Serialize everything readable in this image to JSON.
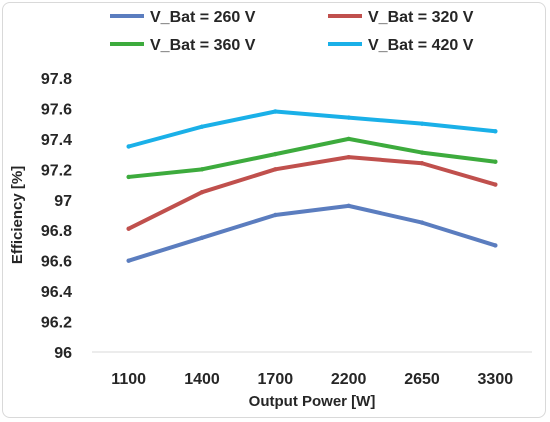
{
  "chart_data": {
    "type": "line",
    "categories": [
      "1100",
      "1400",
      "1700",
      "2200",
      "2650",
      "3300"
    ],
    "series": [
      {
        "name": "V_Bat = 260 V",
        "color": "#5b7dbf",
        "values": [
          96.6,
          96.75,
          96.9,
          96.96,
          96.85,
          96.7
        ]
      },
      {
        "name": "V_Bat = 320 V",
        "color": "#c0504d",
        "values": [
          96.81,
          97.05,
          97.2,
          97.28,
          97.24,
          97.1
        ]
      },
      {
        "name": "V_Bat = 360 V",
        "color": "#3dab3d",
        "values": [
          97.15,
          97.2,
          97.3,
          97.4,
          97.31,
          97.25
        ]
      },
      {
        "name": "V_Bat = 420 V",
        "color": "#1ab0e8",
        "values": [
          97.35,
          97.48,
          97.58,
          97.54,
          97.5,
          97.45
        ]
      }
    ],
    "y_ticks": [
      "96",
      "96.2",
      "96.4",
      "96.6",
      "96.8",
      "97",
      "97.2",
      "97.4",
      "97.6",
      "97.8"
    ],
    "ylim": [
      96,
      97.8
    ],
    "xlabel": "Output Power [W]",
    "ylabel": "Efficiency [%]",
    "grid": false,
    "legend_position": "top"
  }
}
